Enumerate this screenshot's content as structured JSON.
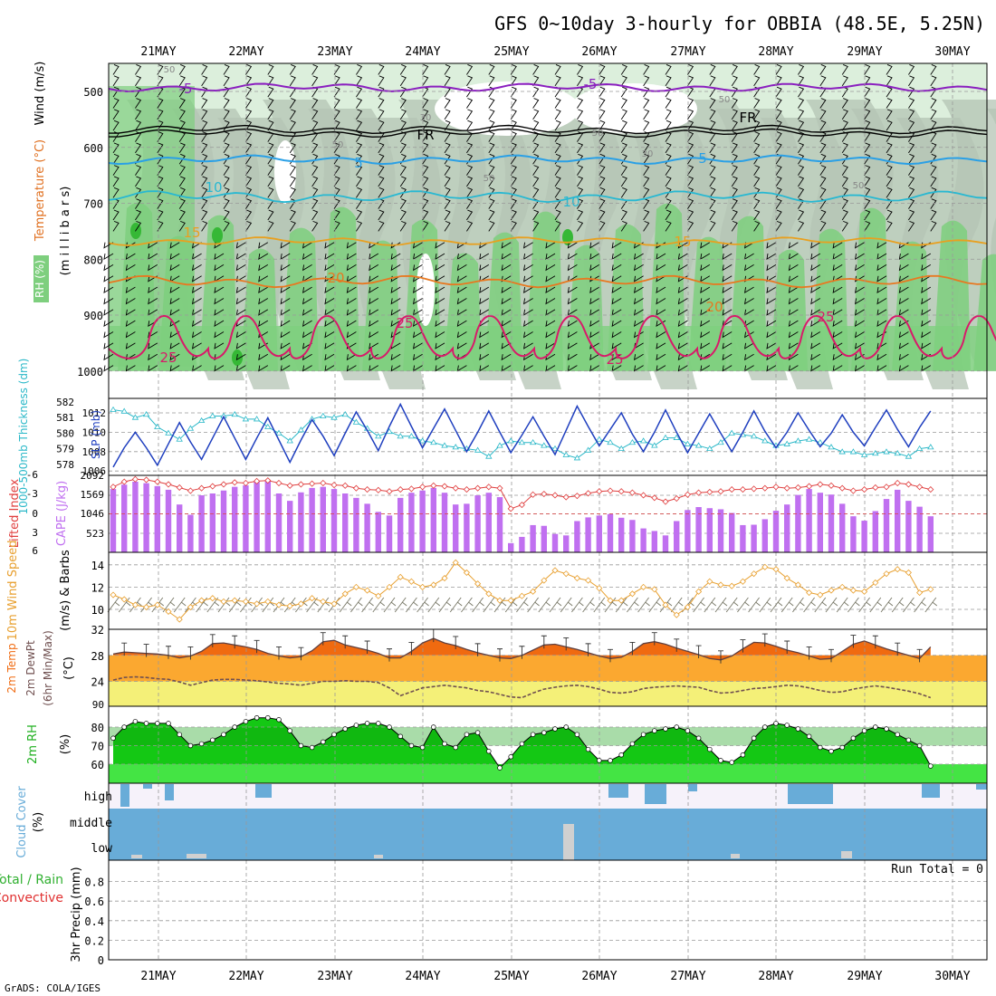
{
  "title": "GFS 0~10day 3-hourly for OBBIA (48.5E, 5.25N)",
  "credit": "GrADS: COLA/IGES",
  "x_axis": {
    "ticks": [
      "21MAY",
      "22MAY",
      "23MAY",
      "24MAY",
      "25MAY",
      "26MAY",
      "27MAY",
      "28MAY",
      "29MAY",
      "30MAY"
    ]
  },
  "chart_data": [
    {
      "id": "upper-air",
      "type": "contour",
      "ylabel_parts": [
        "RH (%)",
        "Temperature (°C)",
        "Wind (m/s)"
      ],
      "ylabel_unit": "(m i l l i b a r s)",
      "y_ticks": [
        500,
        600,
        700,
        800,
        900,
        1000
      ],
      "ylim": [
        1000,
        450
      ],
      "contour_labels": [
        "-5",
        "-5",
        "FR",
        "FR",
        "5",
        "5",
        "10",
        "10",
        "15",
        "15",
        "20",
        "20",
        "25",
        "25",
        "25",
        "25",
        "50",
        "50",
        "50",
        "30",
        "30",
        "50",
        "50",
        "50"
      ],
      "colors": {
        "rh_light": "#dcefdc",
        "rh_mid": "#b4c4b4",
        "rh_high": "#7ecf7e",
        "rh_max": "#36b836",
        "minus5": "#8a1fbf",
        "fr": "#000000",
        "plus5": "#2aa0e6",
        "plus10": "#27b8d2",
        "plus15": "#e8a020",
        "plus20": "#e87820",
        "plus25": "#d81a6a"
      }
    },
    {
      "id": "thickness-slp",
      "type": "line",
      "ylabel_left": "1000-500mb Thickness (dm)",
      "ylabel_right": "SLP (mb)",
      "y_ticks_left": [
        578,
        579,
        580,
        581,
        582
      ],
      "y_ticks_right": [
        1006,
        1008,
        1010,
        1012
      ],
      "series": [
        {
          "name": "SLP (mb)",
          "color": "#1f3fbf",
          "values": [
            1006.4,
            1008.4,
            1010.0,
            1008.4,
            1006.6,
            1008.8,
            1011.0,
            1009.0,
            1007.2,
            1009.4,
            1011.6,
            1009.4,
            1007.2,
            1009.4,
            1011.5,
            1009.2,
            1006.9,
            1009.2,
            1011.3,
            1009.6,
            1007.6,
            1009.9,
            1012.1,
            1010.2,
            1008.1,
            1010.6,
            1012.9,
            1010.6,
            1008.4,
            1010.4,
            1012.4,
            1010.2,
            1008.0,
            1010.0,
            1012.2,
            1010.0,
            1007.9,
            1009.7,
            1011.6,
            1009.6,
            1007.7,
            1010.2,
            1012.7,
            1010.6,
            1008.6,
            1010.3,
            1012.0,
            1009.8,
            1008.0,
            1010.0,
            1012.3,
            1010.0,
            1007.9,
            1009.9,
            1011.9,
            1009.9,
            1008.0,
            1010.0,
            1012.2,
            1010.1,
            1008.4,
            1010.0,
            1012.0,
            1010.2,
            1008.5,
            1009.9,
            1011.8,
            1010.0,
            1008.6,
            1010.5,
            1012.3,
            1010.3,
            1008.5,
            1010.5,
            1012.2
          ]
        },
        {
          "name": "1000-500mb Thickness (dm)",
          "color": "#2ab8c8",
          "values": [
            581.5,
            581.4,
            581.0,
            581.2,
            580.4,
            580.0,
            579.6,
            580.3,
            580.8,
            581.1,
            581.1,
            581.2,
            580.9,
            580.9,
            580.4,
            580.0,
            579.5,
            580.2,
            580.9,
            581.1,
            581.0,
            581.2,
            580.7,
            580.3,
            579.8,
            580.1,
            579.8,
            579.8,
            579.5,
            579.4,
            579.2,
            579.1,
            579.0,
            578.9,
            578.5,
            579.2,
            579.5,
            579.4,
            579.4,
            579.2,
            579.0,
            578.6,
            578.4,
            578.9,
            579.6,
            579.4,
            579.0,
            579.4,
            579.5,
            579.2,
            579.7,
            579.7,
            579.3,
            579.2,
            579.0,
            579.4,
            580.0,
            579.9,
            579.8,
            579.5,
            579.2,
            579.3,
            579.5,
            579.6,
            579.4,
            579.1,
            578.8,
            578.8,
            578.6,
            578.7,
            578.8,
            578.7,
            578.5,
            579.0,
            579.1
          ]
        }
      ]
    },
    {
      "id": "li-cape",
      "type": "bar+line",
      "ylabel_left": "Lifted Index",
      "ylabel_right": "CAPE (J/kg)",
      "y_ticks_left": [
        "-6",
        "-3",
        "0",
        "3",
        "6"
      ],
      "y_ticks_right": [
        "2092",
        "1569",
        "1046",
        "523"
      ],
      "series": [
        {
          "name": "CAPE (J/kg)",
          "color": "#c070f0",
          "values": [
            1720,
            1840,
            1920,
            1880,
            1800,
            1700,
            1300,
            1020,
            1550,
            1600,
            1680,
            1780,
            1820,
            1920,
            1930,
            1600,
            1400,
            1630,
            1750,
            1780,
            1720,
            1600,
            1480,
            1320,
            1100,
            1000,
            1480,
            1620,
            1680,
            1750,
            1620,
            1300,
            1320,
            1550,
            1620,
            1500,
            250,
            420,
            740,
            720,
            500,
            460,
            850,
            950,
            1000,
            1040,
            940,
            880,
            650,
            580,
            460,
            850,
            1150,
            1230,
            1200,
            1170,
            1070,
            740,
            750,
            900,
            1130,
            1300,
            1560,
            1720,
            1620,
            1570,
            1320,
            980,
            860,
            1120,
            1450,
            1700,
            1400,
            1240,
            980
          ]
        },
        {
          "name": "Lifted Index",
          "color": "#e04040",
          "values": [
            -4.2,
            -5.0,
            -5.4,
            -5.3,
            -5.0,
            -4.6,
            -4.1,
            -3.6,
            -4.0,
            -4.3,
            -4.6,
            -4.9,
            -4.8,
            -5.1,
            -5.2,
            -4.8,
            -4.4,
            -4.6,
            -4.7,
            -4.8,
            -4.5,
            -4.4,
            -4.0,
            -3.8,
            -3.7,
            -3.5,
            -3.8,
            -3.9,
            -4.2,
            -4.4,
            -4.3,
            -4.0,
            -3.8,
            -4.0,
            -4.2,
            -4.0,
            -0.8,
            -1.4,
            -3.0,
            -3.1,
            -2.9,
            -2.6,
            -2.8,
            -3.2,
            -3.5,
            -3.6,
            -3.5,
            -3.3,
            -2.9,
            -2.5,
            -1.9,
            -2.4,
            -3.0,
            -3.3,
            -3.4,
            -3.5,
            -3.8,
            -3.8,
            -3.9,
            -4.0,
            -4.2,
            -4.0,
            -4.1,
            -4.3,
            -4.6,
            -4.4,
            -4.0,
            -3.6,
            -3.8,
            -4.1,
            -4.2,
            -4.8,
            -4.6,
            -4.2,
            -3.8
          ]
        }
      ]
    },
    {
      "id": "wind10m",
      "type": "line",
      "ylabel_left": "10m Wind Speed",
      "ylabel_right": "(m/s) & Barbs",
      "y_ticks": [
        10,
        12,
        14
      ],
      "series": [
        {
          "name": "10m Wind Speed",
          "color": "#e8a030",
          "values": [
            11.3,
            10.9,
            10.4,
            10.2,
            10.4,
            9.8,
            9.1,
            10.2,
            10.8,
            11.0,
            10.7,
            10.8,
            10.7,
            10.5,
            10.7,
            10.4,
            10.3,
            10.5,
            11.0,
            10.7,
            10.5,
            11.4,
            12.0,
            11.7,
            11.2,
            12.0,
            12.9,
            12.5,
            12.0,
            12.2,
            12.8,
            14.2,
            13.3,
            12.3,
            11.4,
            10.8,
            10.8,
            11.2,
            11.6,
            12.6,
            13.5,
            13.2,
            12.8,
            12.6,
            11.9,
            10.8,
            10.8,
            11.4,
            12.0,
            11.8,
            10.4,
            9.5,
            10.2,
            11.6,
            12.5,
            12.2,
            12.1,
            12.5,
            13.2,
            13.8,
            13.6,
            12.8,
            12.2,
            11.5,
            11.3,
            11.7,
            12.0,
            11.7,
            11.6,
            12.4,
            13.2,
            13.6,
            13.3,
            11.5,
            11.8
          ]
        }
      ]
    },
    {
      "id": "temp2m",
      "type": "area",
      "ylabel_parts": [
        "2m Temp",
        "2m DewPt",
        "(6hr Min/Max)"
      ],
      "ylabel_unit": "(°C)",
      "y_ticks": [
        24,
        28,
        32
      ],
      "series": [
        {
          "name": "2m Temp",
          "color": "#f06a10",
          "values": [
            28.2,
            28.5,
            28.4,
            28.3,
            28.2,
            28.0,
            27.6,
            27.9,
            28.6,
            29.8,
            29.9,
            29.6,
            29.3,
            28.9,
            28.3,
            27.9,
            27.6,
            27.8,
            28.7,
            30.1,
            30.3,
            29.6,
            29.2,
            28.8,
            28.3,
            27.6,
            27.6,
            28.6,
            29.9,
            30.6,
            29.9,
            29.5,
            28.9,
            28.4,
            28.0,
            27.6,
            27.5,
            28.0,
            28.8,
            29.6,
            29.7,
            29.3,
            28.9,
            28.4,
            27.9,
            27.5,
            27.7,
            28.6,
            29.8,
            30.1,
            29.7,
            29.1,
            28.6,
            28.1,
            27.5,
            27.3,
            27.9,
            29.0,
            30.0,
            29.9,
            29.4,
            28.8,
            28.4,
            27.9,
            27.4,
            27.5,
            28.6,
            29.7,
            30.2,
            29.6,
            29.0,
            28.5,
            28.0,
            27.5,
            29.3
          ]
        },
        {
          "name": "2m DewPt",
          "color": "#705050",
          "values": [
            24.2,
            24.6,
            24.7,
            24.6,
            24.4,
            24.3,
            23.9,
            23.4,
            23.8,
            24.2,
            24.3,
            24.3,
            24.2,
            24.1,
            23.9,
            23.7,
            23.6,
            23.4,
            23.7,
            24.0,
            24.0,
            24.1,
            24.0,
            24.0,
            23.8,
            23.0,
            21.8,
            22.4,
            23.0,
            23.2,
            23.4,
            23.2,
            23.0,
            22.6,
            22.4,
            22.0,
            21.6,
            21.5,
            22.2,
            22.8,
            23.1,
            23.3,
            23.4,
            23.2,
            22.8,
            22.3,
            22.2,
            22.4,
            22.9,
            23.1,
            23.2,
            23.3,
            23.2,
            23.1,
            22.6,
            22.2,
            22.3,
            22.6,
            22.9,
            23.0,
            23.2,
            23.4,
            23.3,
            23.0,
            22.6,
            22.3,
            22.4,
            22.8,
            23.1,
            23.3,
            23.1,
            22.8,
            22.5,
            22.1,
            21.5
          ]
        }
      ]
    },
    {
      "id": "rh2m",
      "type": "area",
      "ylabel": "2m RH",
      "ylabel_unit": "(%)",
      "y_ticks": [
        60,
        70,
        80
      ],
      "series": [
        {
          "name": "2m RH",
          "color": "#28d028",
          "values": [
            74,
            80,
            83,
            82,
            82,
            82,
            76,
            70,
            71,
            73,
            76,
            80,
            83,
            85,
            85,
            84,
            78,
            70,
            69,
            72,
            76,
            79,
            81,
            82,
            82,
            80,
            75,
            70,
            69,
            80,
            71,
            69,
            76,
            77,
            67,
            58,
            64,
            71,
            76,
            77,
            79,
            80,
            76,
            68,
            62,
            62,
            65,
            71,
            76,
            78,
            79,
            80,
            78,
            74,
            68,
            62,
            61,
            65,
            74,
            80,
            82,
            81,
            79,
            75,
            69,
            67,
            69,
            74,
            78,
            80,
            79,
            76,
            73,
            70,
            59
          ]
        }
      ]
    },
    {
      "id": "cloud-cover",
      "type": "heatmap",
      "ylabel": "Cloud Cover",
      "ylabel_unit": "(%)",
      "rows": [
        "high",
        "middle",
        "low"
      ],
      "colors": {
        "cloud": "#68acd8",
        "background": "#f6f2fa",
        "low": "#d0d0d0"
      }
    },
    {
      "id": "precip",
      "type": "bar",
      "ylabel_left": "Total / Rain",
      "ylabel_left2": "Convective",
      "ylabel": "3hr Precip (mm)",
      "y_ticks": [
        "0",
        "0.2",
        "0.4",
        "0.6",
        "0.8"
      ],
      "ylim": [
        0,
        1
      ],
      "run_total": "Run Total = 0",
      "values": []
    }
  ]
}
